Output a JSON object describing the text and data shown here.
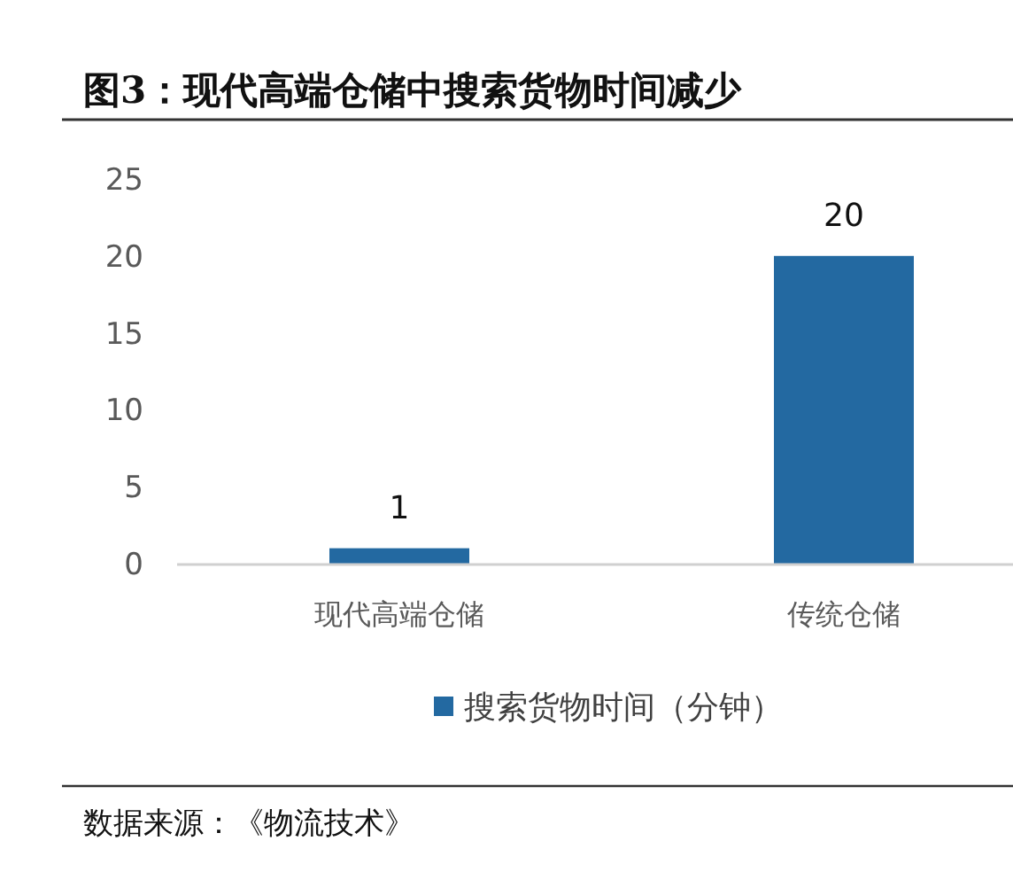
{
  "chart_data": {
    "type": "bar",
    "title": "图3：现代高端仓储中搜索货物时间减少",
    "categories": [
      "现代高端仓储",
      "传统仓储"
    ],
    "series": [
      {
        "name": "搜索货物时间（分钟）",
        "color": "#2369a1",
        "values": [
          1,
          20
        ]
      }
    ],
    "ylim": [
      0,
      25
    ],
    "yticks": [
      0,
      5,
      10,
      15,
      20,
      25
    ],
    "grid": false,
    "data_labels": true,
    "legend": "bottom",
    "annotations": [
      "数据来源：《物流技术》"
    ]
  }
}
